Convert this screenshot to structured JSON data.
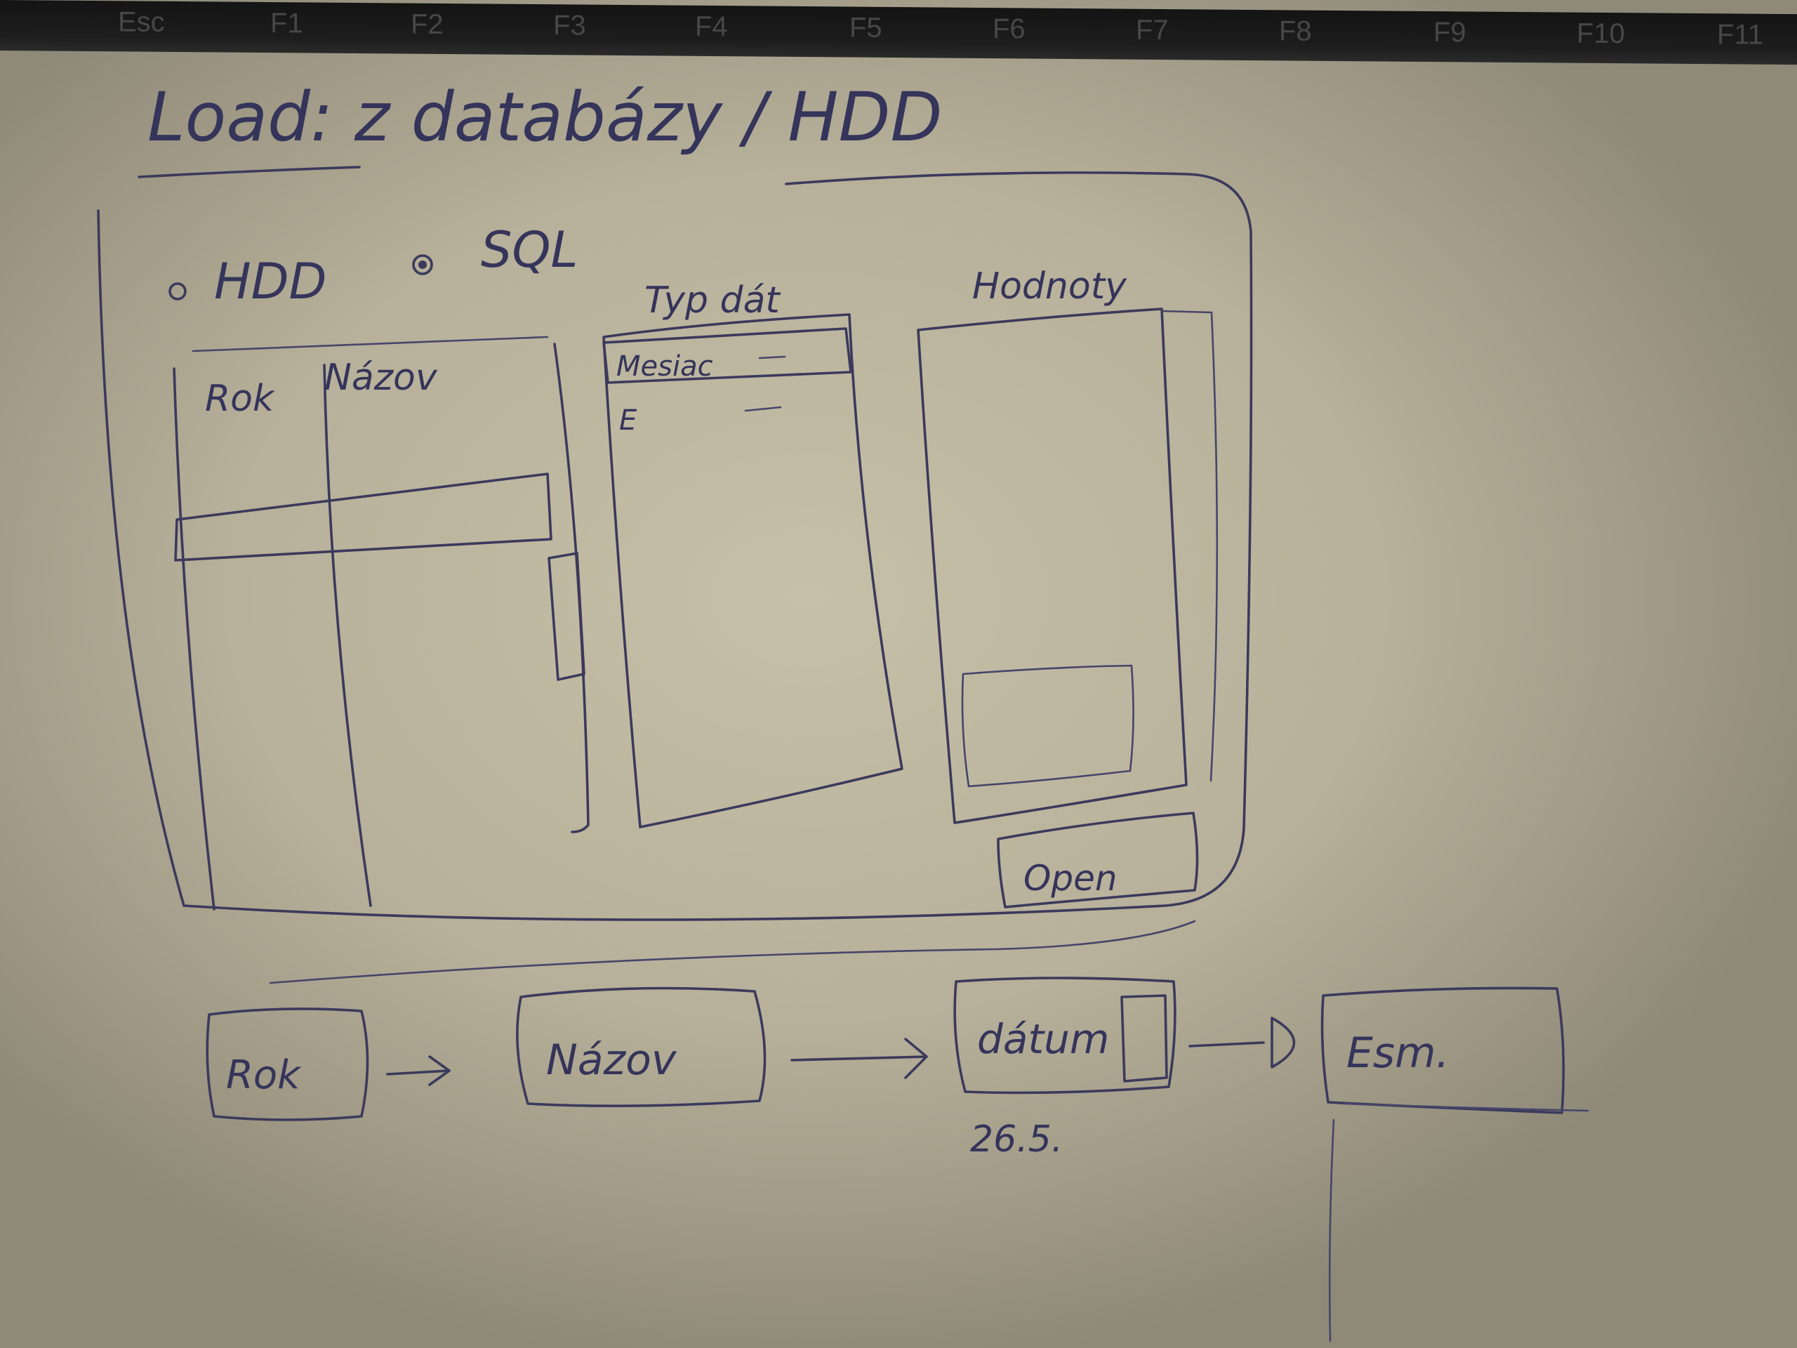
{
  "keyboard": {
    "keys": [
      "Esc",
      "F1",
      "F2",
      "F3",
      "F4",
      "F5",
      "F6",
      "F7",
      "F8",
      "F9",
      "F10",
      "F11"
    ]
  },
  "sketch": {
    "title": "Load: z databázy / HDD",
    "radio_hdd": "HDD",
    "radio_sql": "SQL",
    "col_rok": "Rok",
    "col_nazov": "Názov",
    "list_header": "Typ dát",
    "list_row_1": "Mesiac",
    "list_row_2": "E",
    "preview_header": "Hodnoty",
    "open_button": "Open",
    "flow_1": "Rok",
    "flow_2": "Názov",
    "flow_3": "dátum",
    "flow_3_sub": "26.5.",
    "flow_4": "Esm."
  }
}
